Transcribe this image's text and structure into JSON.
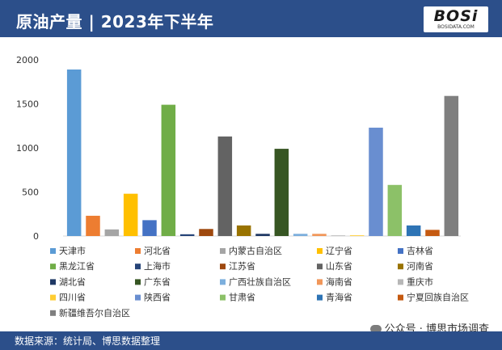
{
  "header": {
    "title": "原油产量 | 2023年下半年",
    "logo_text": "BOSi",
    "logo_sub": "BOSIDATA.COM"
  },
  "footer": {
    "source": "数据来源：统计局、博思数据整理"
  },
  "wechat": {
    "label": "公众号 · 博思市场调查"
  },
  "colors": {
    "header_bg": "#2c4f8a"
  },
  "chart_data": {
    "type": "bar",
    "title": "",
    "xlabel": "",
    "ylabel": "",
    "ylim": [
      0,
      2000
    ],
    "yticks": [
      0,
      500,
      1000,
      1500,
      2000
    ],
    "grid": false,
    "legend": "bottom",
    "series": [
      {
        "name": "天津市",
        "value": 1890,
        "color": "#5b9bd5"
      },
      {
        "name": "河北省",
        "value": 230,
        "color": "#ed7d31"
      },
      {
        "name": "内蒙古自治区",
        "value": 75,
        "color": "#a5a5a5"
      },
      {
        "name": "辽宁省",
        "value": 480,
        "color": "#ffc000"
      },
      {
        "name": "吉林省",
        "value": 180,
        "color": "#4472c4"
      },
      {
        "name": "黑龙江省",
        "value": 1490,
        "color": "#70ad47"
      },
      {
        "name": "上海市",
        "value": 20,
        "color": "#264478"
      },
      {
        "name": "江苏省",
        "value": 80,
        "color": "#9e480e"
      },
      {
        "name": "山东省",
        "value": 1130,
        "color": "#636363"
      },
      {
        "name": "河南省",
        "value": 120,
        "color": "#997300"
      },
      {
        "name": "湖北省",
        "value": 25,
        "color": "#1f3864"
      },
      {
        "name": "广东省",
        "value": 990,
        "color": "#375623"
      },
      {
        "name": "广西壮族自治区",
        "value": 25,
        "color": "#7cafdd"
      },
      {
        "name": "海南省",
        "value": 25,
        "color": "#f1975a"
      },
      {
        "name": "重庆市",
        "value": 5,
        "color": "#b7b7b7"
      },
      {
        "name": "四川省",
        "value": 8,
        "color": "#ffcd33"
      },
      {
        "name": "陕西省",
        "value": 1230,
        "color": "#698ed0"
      },
      {
        "name": "甘肃省",
        "value": 580,
        "color": "#8cc168"
      },
      {
        "name": "青海省",
        "value": 120,
        "color": "#2e74b5"
      },
      {
        "name": "宁夏回族自治区",
        "value": 70,
        "color": "#c55a11"
      },
      {
        "name": "新疆维吾尔自治区",
        "value": 1590,
        "color": "#7f7f7f"
      }
    ]
  }
}
